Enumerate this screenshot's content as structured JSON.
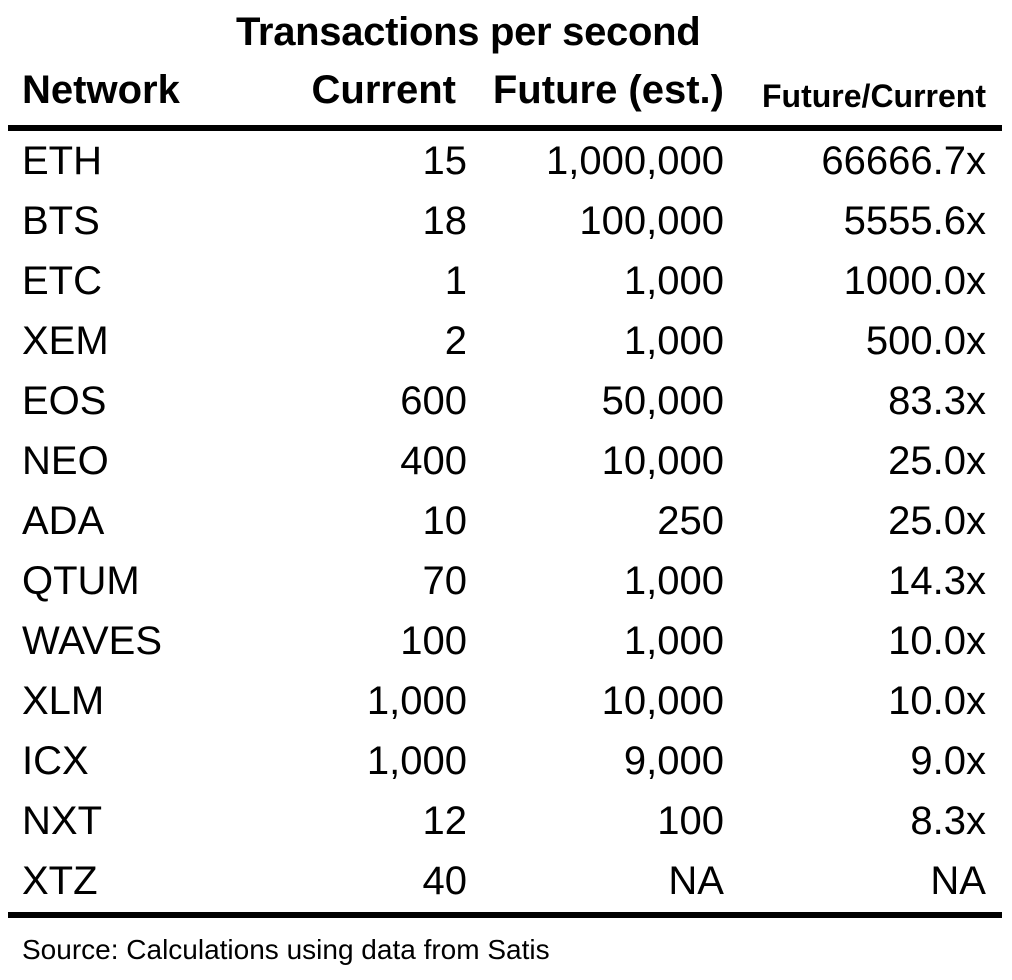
{
  "chart_data": {
    "type": "table",
    "title": "Transactions per second",
    "columns": [
      "Network",
      "Current",
      "Future (est.)",
      "Future/Current"
    ],
    "rows": [
      {
        "network": "ETH",
        "current": "15",
        "future": "1,000,000",
        "ratio": "66666.7x"
      },
      {
        "network": "BTS",
        "current": "18",
        "future": "100,000",
        "ratio": "5555.6x"
      },
      {
        "network": "ETC",
        "current": "1",
        "future": "1,000",
        "ratio": "1000.0x"
      },
      {
        "network": "XEM",
        "current": "2",
        "future": "1,000",
        "ratio": "500.0x"
      },
      {
        "network": "EOS",
        "current": "600",
        "future": "50,000",
        "ratio": "83.3x"
      },
      {
        "network": "NEO",
        "current": "400",
        "future": "10,000",
        "ratio": "25.0x"
      },
      {
        "network": "ADA",
        "current": "10",
        "future": "250",
        "ratio": "25.0x"
      },
      {
        "network": "QTUM",
        "current": "70",
        "future": "1,000",
        "ratio": "14.3x"
      },
      {
        "network": "WAVES",
        "current": "100",
        "future": "1,000",
        "ratio": "10.0x"
      },
      {
        "network": "XLM",
        "current": "1,000",
        "future": "10,000",
        "ratio": "10.0x"
      },
      {
        "network": "ICX",
        "current": "1,000",
        "future": "9,000",
        "ratio": "9.0x"
      },
      {
        "network": "NXT",
        "current": "12",
        "future": "100",
        "ratio": "8.3x"
      },
      {
        "network": "XTZ",
        "current": "40",
        "future": "NA",
        "ratio": "NA"
      }
    ],
    "source": "Source: Calculations using data from Satis"
  }
}
